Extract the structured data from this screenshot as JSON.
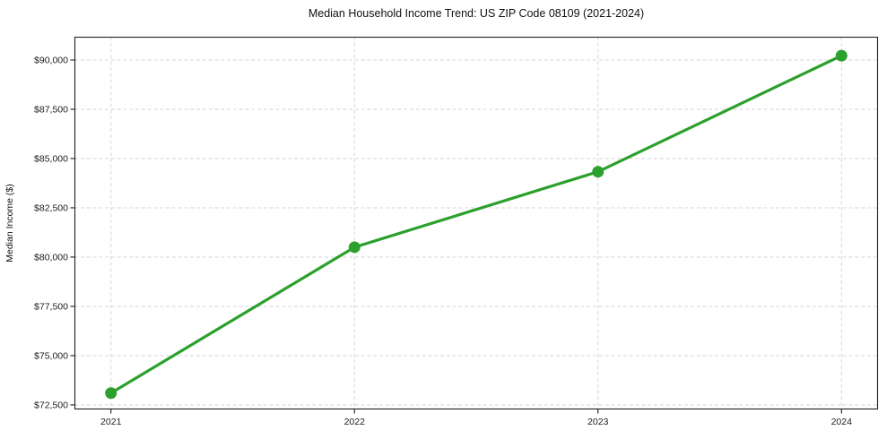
{
  "chart_data": {
    "type": "line",
    "title": "Median Household Income Trend: US ZIP Code 08109 (2021-2024)",
    "xlabel": "",
    "ylabel": "Median Income ($)",
    "x": [
      2021,
      2022,
      2023,
      2024
    ],
    "x_tick_labels": [
      "2021",
      "2022",
      "2023",
      "2024"
    ],
    "series": [
      {
        "name": "Median Household Income",
        "values": [
          73100,
          80500,
          84330,
          90220
        ]
      }
    ],
    "y_ticks": [
      72500,
      75000,
      77500,
      80000,
      82500,
      85000,
      87500,
      90000
    ],
    "y_tick_labels": [
      "$72,500",
      "$75,000",
      "$77,500",
      "$80,000",
      "$82,500",
      "$85,000",
      "$87,500",
      "$90,000"
    ],
    "xlim": [
      2020.85,
      2024.15
    ],
    "ylim": [
      72270,
      91180
    ],
    "grid": true,
    "grid_style": "dashed",
    "legend": "none",
    "colors": {
      "line": "#2ca02c",
      "marker": "#2ca02c",
      "grid": "#d5d5d5",
      "spine": "#1f1f1f",
      "background": "#ffffff",
      "text": "#1c1c1c"
    }
  }
}
